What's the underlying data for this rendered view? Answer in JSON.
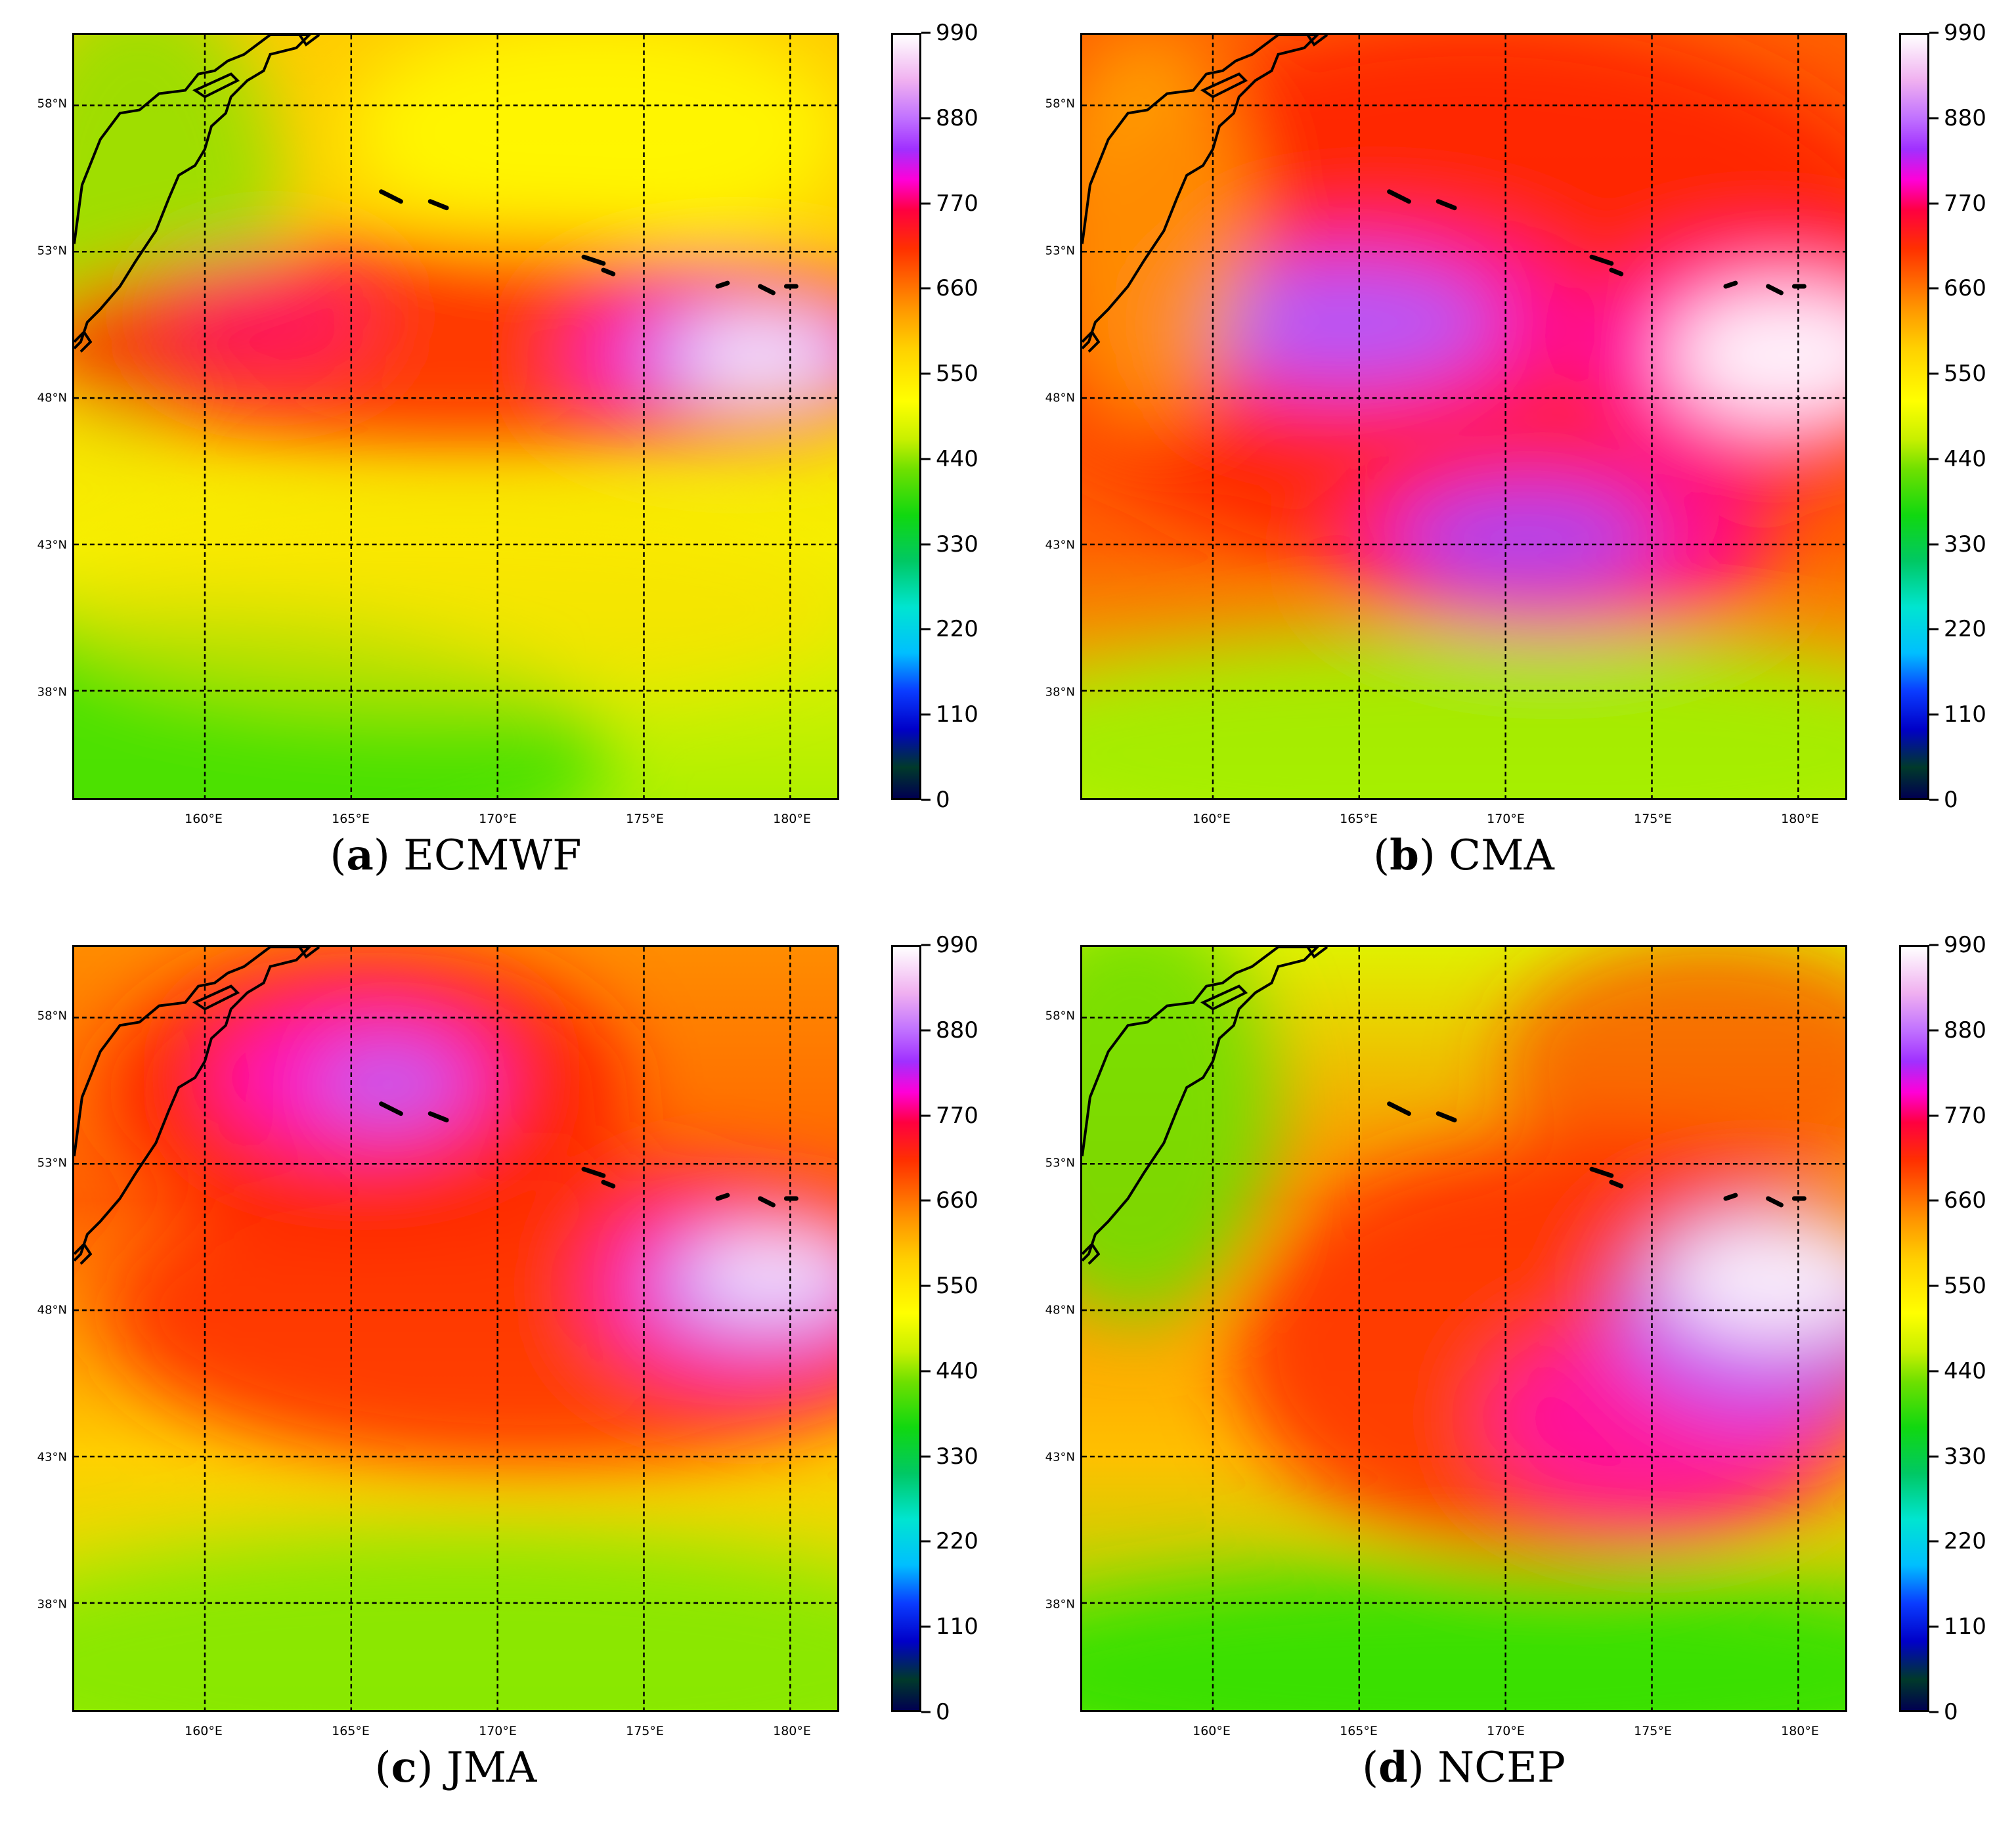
{
  "figure": {
    "panels": [
      {
        "letter": "a",
        "title": "ECMWF",
        "scheme": "ecmwf"
      },
      {
        "letter": "b",
        "title": "CMA",
        "scheme": "cma"
      },
      {
        "letter": "c",
        "title": "JMA",
        "scheme": "jma"
      },
      {
        "letter": "d",
        "title": "NCEP",
        "scheme": "ncep"
      }
    ],
    "lat_labels": [
      "58°N",
      "53°N",
      "48°N",
      "43°N",
      "38°N"
    ],
    "lon_labels": [
      "160°E",
      "165°E",
      "170°E",
      "175°E",
      "180°E"
    ],
    "colorbar_ticks": [
      "990",
      "880",
      "770",
      "660",
      "550",
      "440",
      "330",
      "220",
      "110",
      "0"
    ],
    "colorbar_range": [
      0,
      990
    ]
  }
}
